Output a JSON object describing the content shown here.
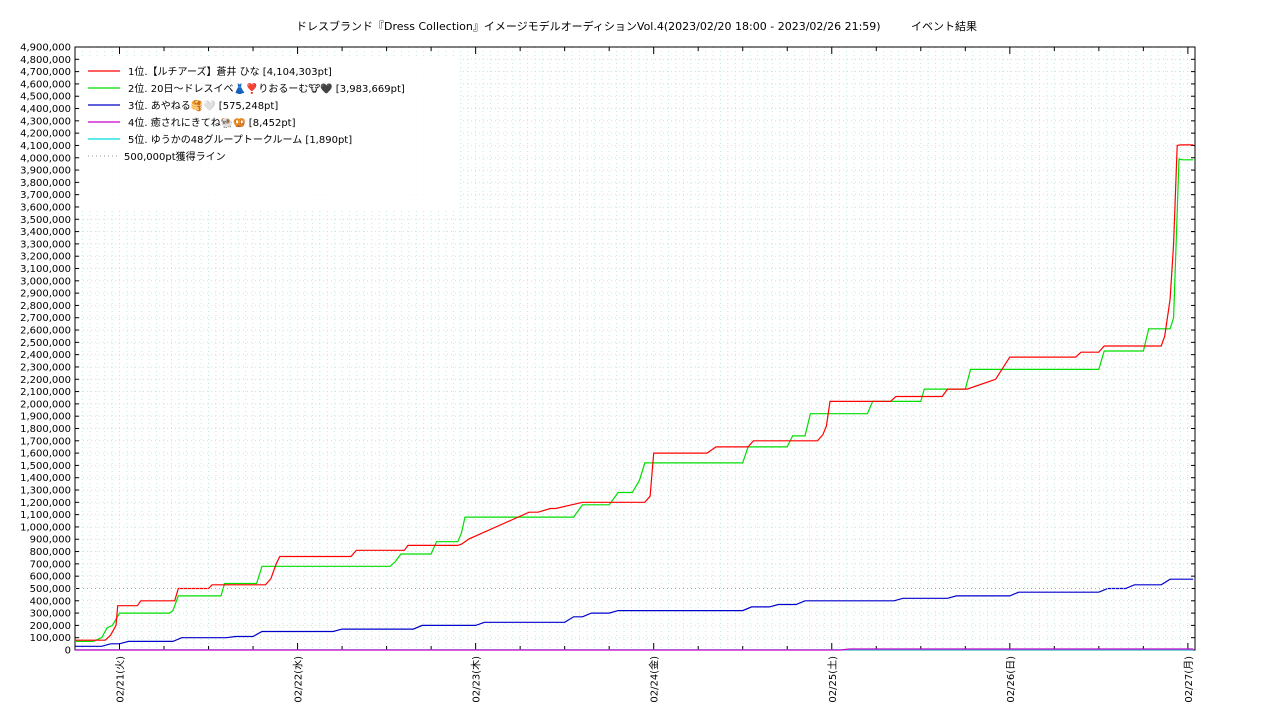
{
  "chart_data": {
    "type": "line",
    "title": "ドレスブランド『Dress Collection』イメージモデルオーディションVol.4(2023/02/20 18:00 - 2023/02/26 21:59)",
    "subtitle": "イベント結果",
    "xlabel": "",
    "ylabel": "",
    "ylim": [
      0,
      4900000
    ],
    "yticks": [
      0,
      100000,
      200000,
      300000,
      400000,
      500000,
      600000,
      700000,
      800000,
      900000,
      1000000,
      1100000,
      1200000,
      1300000,
      1400000,
      1500000,
      1600000,
      1700000,
      1800000,
      1900000,
      2000000,
      2100000,
      2200000,
      2300000,
      2400000,
      2500000,
      2600000,
      2700000,
      2800000,
      2900000,
      3000000,
      3100000,
      3200000,
      3300000,
      3400000,
      3500000,
      3600000,
      3700000,
      3800000,
      3900000,
      4000000,
      4100000,
      4200000,
      4300000,
      4400000,
      4500000,
      4600000,
      4700000,
      4800000,
      4900000
    ],
    "ytick_labels": [
      "0",
      "100,000",
      "200,000",
      "300,000",
      "400,000",
      "500,000",
      "600,000",
      "700,000",
      "800,000",
      "900,000",
      "1,000,000",
      "1,100,000",
      "1,200,000",
      "1,300,000",
      "1,400,000",
      "1,500,000",
      "1,600,000",
      "1,700,000",
      "1,800,000",
      "1,900,000",
      "2,000,000",
      "2,100,000",
      "2,200,000",
      "2,300,000",
      "2,400,000",
      "2,500,000",
      "2,600,000",
      "2,700,000",
      "2,800,000",
      "2,900,000",
      "3,000,000",
      "3,100,000",
      "3,200,000",
      "3,300,000",
      "3,400,000",
      "3,500,000",
      "3,600,000",
      "3,700,000",
      "3,800,000",
      "3,900,000",
      "4,000,000",
      "4,100,000",
      "4,200,000",
      "4,300,000",
      "4,400,000",
      "4,500,000",
      "4,600,000",
      "4,700,000",
      "4,800,000",
      "4,900,000"
    ],
    "xlim": [
      -0.25,
      6.04
    ],
    "xticks": [
      0,
      1,
      2,
      3,
      4,
      5,
      6
    ],
    "xtick_labels": [
      "02/21(火)",
      "02/22(水)",
      "02/23(木)",
      "02/24(金)",
      "02/25(土)",
      "02/26(日)",
      "02/27(月)"
    ],
    "grid": true,
    "legend_position": "top-left",
    "series": [
      {
        "name": "1位.【ルチアーズ】蒼井 ひな [4,104,303pt]",
        "color": "#ff0000",
        "x": [
          -0.25,
          -0.08,
          -0.05,
          -0.02,
          -0.01,
          0.1,
          0.12,
          0.31,
          0.33,
          0.5,
          0.52,
          0.68,
          0.82,
          0.85,
          0.88,
          0.9,
          0.92,
          1.3,
          1.33,
          1.6,
          1.62,
          1.9,
          1.92,
          1.94,
          1.96,
          2.3,
          2.35,
          2.42,
          2.45,
          2.6,
          2.65,
          2.95,
          2.98,
          3.0,
          3.3,
          3.35,
          3.53,
          3.56,
          3.92,
          3.95,
          3.97,
          3.99,
          4.33,
          4.36,
          4.56,
          4.6,
          4.62,
          4.65,
          4.72,
          4.76,
          4.92,
          5.0,
          5.03,
          5.06,
          5.37,
          5.4,
          5.5,
          5.53,
          5.85,
          5.87,
          5.9,
          5.92,
          5.94,
          5.96,
          5.98,
          6.03
        ],
        "y": [
          80000,
          80000,
          120000,
          200000,
          360000,
          360000,
          400000,
          400000,
          500000,
          500000,
          530000,
          530000,
          530000,
          580000,
          700000,
          760000,
          760000,
          760000,
          810000,
          810000,
          850000,
          850000,
          860000,
          880000,
          900000,
          1120000,
          1120000,
          1150000,
          1150000,
          1200000,
          1200000,
          1200000,
          1250000,
          1600000,
          1600000,
          1650000,
          1650000,
          1700000,
          1700000,
          1750000,
          1820000,
          2020000,
          2020000,
          2060000,
          2060000,
          2060000,
          2060000,
          2120000,
          2120000,
          2120000,
          2200000,
          2380000,
          2380000,
          2380000,
          2380000,
          2420000,
          2420000,
          2470000,
          2470000,
          2550000,
          2850000,
          3300000,
          4100000,
          4104303,
          4104303,
          4104303
        ]
      },
      {
        "name": "2位. 20日〜ドレスイベ👗❣️りおるーむ🐮🖤 [3,983,669pt]",
        "color": "#00dd00",
        "x": [
          -0.25,
          -0.15,
          -0.1,
          -0.07,
          -0.04,
          -0.02,
          0.0,
          0.05,
          0.28,
          0.3,
          0.33,
          0.45,
          0.57,
          0.59,
          0.77,
          0.8,
          0.82,
          1.52,
          1.55,
          1.58,
          1.75,
          1.78,
          1.9,
          1.92,
          1.94,
          2.55,
          2.6,
          2.75,
          2.8,
          2.88,
          2.92,
          2.95,
          3.5,
          3.53,
          3.57,
          3.75,
          3.78,
          3.85,
          3.88,
          4.2,
          4.23,
          4.5,
          4.52,
          4.75,
          4.78,
          4.83,
          4.9,
          5.5,
          5.53,
          5.75,
          5.78,
          5.9,
          5.92,
          5.95,
          5.97,
          6.03
        ],
        "y": [
          70000,
          70000,
          100000,
          180000,
          200000,
          250000,
          300000,
          300000,
          300000,
          320000,
          440000,
          440000,
          440000,
          540000,
          540000,
          680000,
          680000,
          680000,
          720000,
          780000,
          780000,
          880000,
          880000,
          950000,
          1080000,
          1080000,
          1180000,
          1180000,
          1280000,
          1280000,
          1380000,
          1520000,
          1520000,
          1650000,
          1650000,
          1650000,
          1740000,
          1740000,
          1920000,
          1920000,
          2020000,
          2020000,
          2120000,
          2120000,
          2280000,
          2280000,
          2280000,
          2280000,
          2430000,
          2430000,
          2610000,
          2610000,
          2700000,
          3990000,
          3983669,
          3983669
        ]
      },
      {
        "name": "3位. あやねる🥞🤍 [575,248pt]",
        "color": "#0000cc",
        "x": [
          -0.25,
          -0.1,
          -0.05,
          0.0,
          0.05,
          0.3,
          0.35,
          0.6,
          0.65,
          0.75,
          0.8,
          1.2,
          1.25,
          1.65,
          1.7,
          2.0,
          2.05,
          2.5,
          2.55,
          2.6,
          2.65,
          2.75,
          2.8,
          3.5,
          3.55,
          3.65,
          3.7,
          3.8,
          3.85,
          4.35,
          4.4,
          4.65,
          4.7,
          5.0,
          5.05,
          5.5,
          5.55,
          5.65,
          5.7,
          5.85,
          5.9,
          6.03
        ],
        "y": [
          30000,
          30000,
          50000,
          50000,
          70000,
          70000,
          100000,
          100000,
          110000,
          110000,
          150000,
          150000,
          170000,
          170000,
          200000,
          200000,
          225000,
          225000,
          270000,
          270000,
          300000,
          300000,
          320000,
          320000,
          350000,
          350000,
          370000,
          370000,
          400000,
          400000,
          420000,
          420000,
          440000,
          440000,
          470000,
          470000,
          500000,
          500000,
          530000,
          530000,
          575248,
          575248
        ]
      },
      {
        "name": "4位. 癒されにきてね🐏🥨 [8,452pt]",
        "color": "#cc00cc",
        "x": [
          -0.25,
          4.05,
          4.1,
          6.03
        ],
        "y": [
          0,
          0,
          8452,
          8452
        ]
      },
      {
        "name": "5位. ゆうかの48グループトークルーム [1,890pt]",
        "color": "#00dddd",
        "x": [
          -0.25,
          6.03
        ],
        "y": [
          1890,
          1890
        ]
      }
    ],
    "reference_line": {
      "name": "500,000pt獲得ライン",
      "color": "#aaaaaa",
      "value": 500000
    }
  }
}
